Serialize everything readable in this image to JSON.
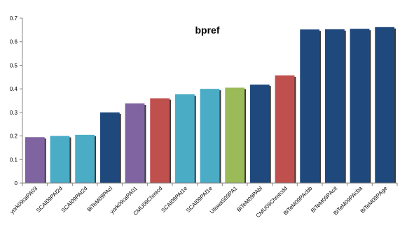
{
  "chart_data": {
    "type": "bar",
    "title": "bpref",
    "xlabel": "",
    "ylabel": "",
    "ylim": [
      0,
      0.7
    ],
    "yticks": [
      "0",
      "0.1",
      "0.2",
      "0.3",
      "0.4",
      "0.5",
      "0.6",
      "0.7"
    ],
    "grid": false,
    "legend": "none",
    "categories": [
      "york09caPA03",
      "SCAI09PAf2d",
      "SCAI09PAt2d",
      "BiTeM09PAcl",
      "york09caPA01",
      "CMU09Chmtcd",
      "SCAI09PAt1e",
      "SCAI09PAf1e",
      "UIowaS09PA1",
      "BiTeM09PAbl",
      "CMU09Chmtcdd",
      "BiTeM09PAcbb",
      "BiTeM09PAcit",
      "BiTeM09PAcba",
      "BiTeM09PAge"
    ],
    "values": [
      0.195,
      0.2,
      0.205,
      0.3,
      0.338,
      0.36,
      0.377,
      0.4,
      0.405,
      0.418,
      0.457,
      0.652,
      0.653,
      0.655,
      0.662
    ],
    "colors": [
      "#8064a2",
      "#4bacc6",
      "#4bacc6",
      "#1f497d",
      "#8064a2",
      "#c0504d",
      "#4bacc6",
      "#4bacc6",
      "#9bbb59",
      "#1f497d",
      "#c0504d",
      "#1f497d",
      "#1f497d",
      "#1f497d",
      "#1f497d"
    ],
    "axis_color": "#868686",
    "shadow_color": "#3a3a3a"
  }
}
